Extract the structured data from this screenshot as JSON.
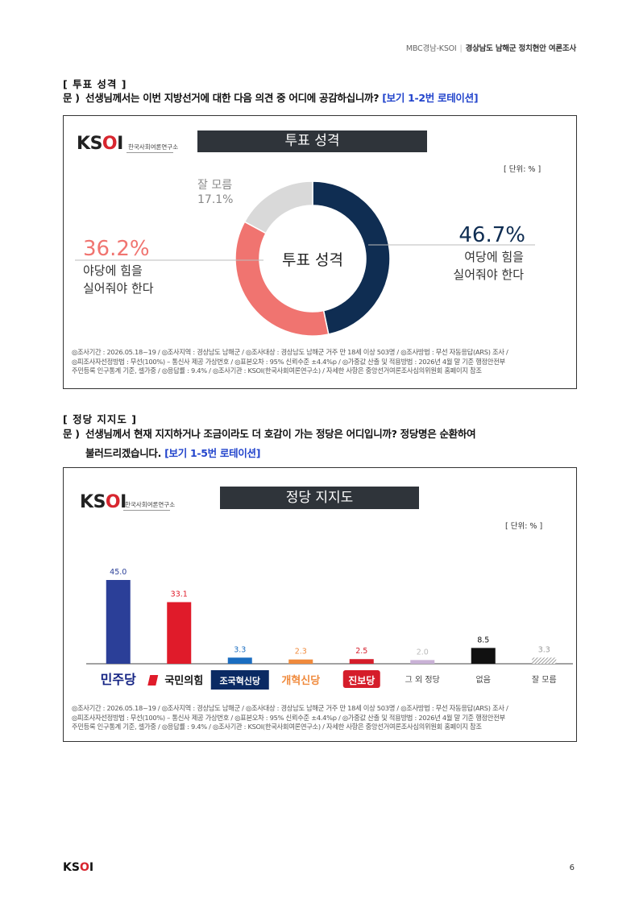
{
  "header": {
    "source": "MBC경남-KSOI",
    "title": "경상남도 남해군 정치현안 여론조사"
  },
  "section1": {
    "heading": "[ 투표 성격 ]",
    "q_label": "문 )",
    "question": "선생님께서는 이번 지방선거에 대한 다음 의견 중 어디에 공감하십니까?",
    "note": "[보기 1-2번 로테이션]"
  },
  "section2": {
    "heading": "[ 정당 지지도 ]",
    "q_label": "문 )",
    "question_line1": "선생님께서 현재 지지하거나 조금이라도 더 호감이 가는 정당은 어디입니까? 정당명은 순환하여",
    "question_line2": "불러드리겠습니다.",
    "note": "[보기 1-5번 로테이션]"
  },
  "logo": {
    "text_k": "K",
    "text_s": "S",
    "text_o": "O",
    "text_i": "I",
    "sub": "한국사회여론연구소"
  },
  "footer_lines": [
    "◎조사기간 : 2026.05.18~19 / ◎조사지역 : 경상남도 남해군 / ◎조사대상 : 경상남도 남해군 거주 만 18세 이상 503명 / ◎조사방법 : 무선 자동응답(ARS) 조사 /",
    "◎피조사자선정방법 : 무선(100%) – 통신사 제공 가상번호 / ◎표본오차 : 95% 신뢰수준 ±4.4%p / ◎가중값 산출 및 적용방법 : 2026년 4월 말 기준 행정안전부",
    "주민등록 인구통계 기준, 셀가중 / ◎응답률 : 9.4% / ◎조사기관 : KSOI(한국사회여론연구소) / 자세한 사항은 중앙선거여론조사심의위원회 홈페이지 참조"
  ],
  "chart_data": [
    {
      "type": "pie",
      "title": "투표 성격",
      "center_label": "투표 성격",
      "unit": "[ 단위: % ]",
      "slices": [
        {
          "label": "여당에 힘을 실어줘야 한다",
          "label_line1": "여당에 힘을",
          "label_line2": "실어줘야 한다",
          "value": 46.7,
          "value_label": "46.7%",
          "color": "#0f2d52"
        },
        {
          "label": "야당에 힘을 실어줘야 한다",
          "label_line1": "야당에 힘을",
          "label_line2": "실어줘야 한다",
          "value": 36.2,
          "value_label": "36.2%",
          "color": "#f07470"
        },
        {
          "label": "잘 모름",
          "value": 17.1,
          "value_label": "17.1%",
          "color": "#d9d9d9"
        }
      ]
    },
    {
      "type": "bar",
      "title": "정당 지지도",
      "unit": "[ 단위: % ]",
      "categories": [
        "더불어민주당",
        "국민의힘",
        "조국혁신당",
        "개혁신당",
        "진보당",
        "그 외 정당",
        "없음",
        "잘 모름"
      ],
      "category_labels": [
        "민주당",
        "국민의힘",
        "조국혁신당",
        "개혁신당",
        "진보당",
        "그 외 정당",
        "없음",
        "잘 모름"
      ],
      "values": [
        45.0,
        33.1,
        3.3,
        2.3,
        2.5,
        2.0,
        8.5,
        3.3
      ],
      "value_labels": [
        "45.0",
        "33.1",
        "3.3",
        "2.3",
        "2.5",
        "2.0",
        "8.5",
        "3.3"
      ],
      "colors": [
        "#2b3f98",
        "#e01b2a",
        "#1a6dc0",
        "#f08a3c",
        "#d51d2a",
        "#c9b2d6",
        "#111111",
        "#aaaaaa"
      ],
      "label_colors": [
        "#2b3f98",
        "#e01b2a",
        "#1a6dc0",
        "#f08a3c",
        "#d51d2a",
        "#bbbbbb",
        "#111111",
        "#999999"
      ],
      "ylim": [
        0,
        50
      ]
    }
  ],
  "page_number": "6"
}
